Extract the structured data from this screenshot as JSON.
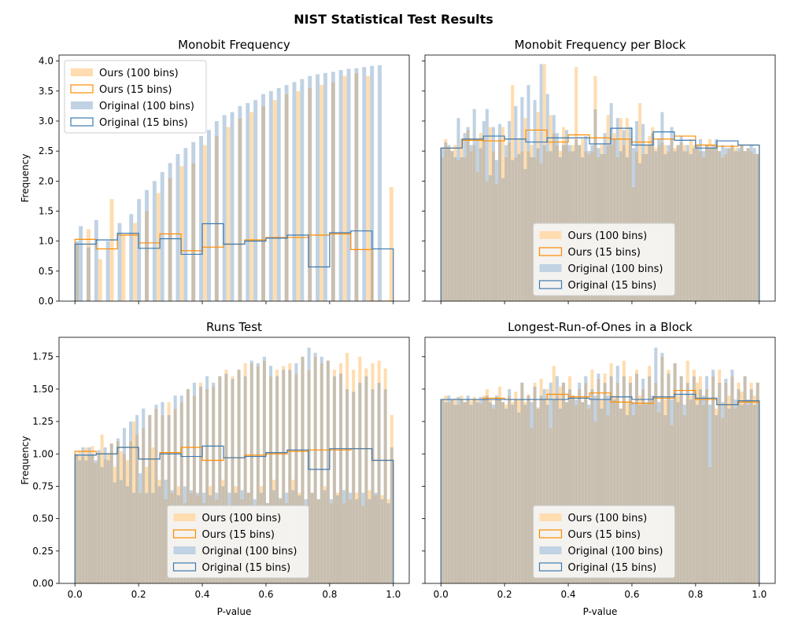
{
  "figure": {
    "title": "NIST Statistical Test Results"
  },
  "legend_labels": [
    "Ours (100 bins)",
    "Ours (15 bins)",
    "Original (100 bins)",
    "Original (15 bins)"
  ],
  "colors": {
    "ours_fill": "#ffddb0",
    "ours_edge": "#ff8c00",
    "orig_fill": "#c0d2e3",
    "orig_edge": "#3d7ab0",
    "overlap": "#c8bfb0"
  },
  "chart_data": [
    {
      "type": "bar",
      "title": "Monobit Frequency",
      "xlabel": "",
      "ylabel": "Frequency",
      "xlim": [
        -0.05,
        1.05
      ],
      "ylim": [
        0,
        4.1
      ],
      "yticks": [
        0.0,
        0.5,
        1.0,
        1.5,
        2.0,
        2.5,
        3.0,
        3.5,
        4.0
      ],
      "ytick_labels": [
        "0.0",
        "0.5",
        "1.0",
        "1.5",
        "2.0",
        "2.5",
        "3.0",
        "3.5",
        "4.0"
      ],
      "xticks": [
        0.0,
        0.2,
        0.4,
        0.6,
        0.8,
        1.0
      ],
      "xtick_labels": [
        "",
        "",
        "",
        "",
        "",
        ""
      ],
      "legend_position": "upper-left",
      "ours_100": [
        0.95,
        0,
        0,
        1.2,
        0,
        0,
        0.7,
        0,
        0,
        1.7,
        0,
        0,
        1.1,
        0,
        0,
        1.3,
        0,
        0,
        1.5,
        0,
        0,
        1.8,
        0,
        0,
        2.05,
        0,
        0,
        2.25,
        0,
        0,
        2.3,
        0,
        0,
        2.6,
        0,
        0,
        2.75,
        0,
        0,
        2.9,
        0,
        0,
        3.05,
        0,
        0,
        3.15,
        0,
        0,
        3.25,
        0,
        0,
        3.35,
        0,
        0,
        3.45,
        0,
        0,
        3.5,
        0,
        0,
        3.55,
        0,
        0,
        3.6,
        0,
        0,
        3.65,
        0,
        0,
        3.75,
        0,
        0,
        3.8,
        0,
        0,
        3.75,
        0,
        0,
        0,
        0,
        0,
        1.9
      ],
      "orig_100": [
        1.0,
        1.25,
        0,
        0.9,
        0,
        1.35,
        0,
        0,
        1.0,
        0,
        0,
        1.3,
        0,
        0,
        1.45,
        0,
        1.7,
        0,
        1.85,
        0,
        2.0,
        0,
        2.15,
        0,
        2.3,
        0,
        2.45,
        0,
        2.55,
        0,
        2.65,
        0,
        2.75,
        0,
        2.85,
        0,
        3.0,
        0,
        3.1,
        0,
        3.15,
        0,
        3.25,
        0,
        3.3,
        0,
        3.35,
        0,
        3.45,
        0,
        3.5,
        0,
        3.55,
        0,
        3.6,
        0,
        3.65,
        0,
        3.7,
        0,
        3.75,
        0,
        3.78,
        0,
        3.8,
        0,
        3.82,
        0,
        3.85,
        0,
        3.87,
        0,
        3.88,
        0,
        3.9,
        0,
        3.92,
        0,
        3.93,
        0,
        0,
        0,
        0,
        0,
        0,
        0,
        0,
        0,
        0,
        0,
        0,
        0,
        0,
        0,
        0,
        0,
        0,
        1.95
      ],
      "ours_15": [
        1.03,
        0.87,
        1.1,
        0.97,
        1.12,
        0.84,
        0.9,
        0.95,
        1.02,
        1.06,
        1.06,
        1.1,
        1.12,
        0.86,
        0.0
      ],
      "orig_15": [
        0.95,
        1.02,
        1.13,
        0.88,
        1.04,
        0.78,
        1.29,
        0.95,
        1.0,
        1.05,
        1.1,
        0.57,
        1.14,
        1.17,
        0.87
      ]
    },
    {
      "type": "bar",
      "title": "Monobit Frequency per Block",
      "xlabel": "",
      "ylabel": "",
      "xlim": [
        -0.05,
        1.05
      ],
      "ylim": [
        0,
        4.1
      ],
      "yticks": [
        0.0,
        0.5,
        1.0,
        1.5,
        2.0,
        2.5,
        3.0,
        3.5,
        4.0
      ],
      "ytick_labels": [
        "",
        "",
        "",
        "",
        "",
        "",
        "",
        "",
        ""
      ],
      "xticks": [
        0.0,
        0.2,
        0.4,
        0.6,
        0.8,
        1.0
      ],
      "xtick_labels": [
        "",
        "",
        "",
        "",
        "",
        ""
      ],
      "legend_position": "lower-center",
      "ours_100": [
        2.4,
        2.7,
        2.55,
        2.5,
        2.6,
        2.35,
        2.7,
        2.4,
        2.85,
        2.5,
        2.6,
        2.15,
        2.8,
        2.7,
        2.0,
        2.9,
        2.5,
        1.95,
        2.7,
        2.9,
        2.4,
        2.65,
        3.6,
        2.4,
        2.7,
        2.5,
        3.05,
        2.5,
        2.6,
        2.4,
        3.15,
        2.3,
        3.95,
        2.5,
        3.1,
        2.8,
        2.6,
        2.5,
        2.9,
        2.6,
        2.5,
        2.6,
        3.9,
        2.6,
        2.7,
        2.5,
        2.45,
        2.5,
        3.75,
        2.4,
        2.6,
        2.45,
        3.1,
        2.6,
        2.8,
        2.4,
        3.05,
        2.6,
        3.05,
        2.7,
        1.9,
        2.5,
        3.3,
        2.45,
        2.6,
        2.75,
        2.9,
        2.55,
        2.6,
        2.65,
        2.6,
        2.5,
        2.7,
        2.55,
        2.6,
        2.65,
        2.6,
        2.5,
        2.7,
        2.6,
        2.6,
        2.5,
        2.4,
        2.6,
        2.7,
        2.55,
        2.6,
        2.5,
        2.4,
        2.45,
        2.55,
        2.6,
        2.55,
        2.5,
        2.6,
        2.5,
        2.55,
        2.5,
        2.45,
        2.45
      ],
      "orig_100": [
        2.55,
        2.65,
        2.6,
        2.5,
        2.4,
        3.05,
        2.4,
        2.8,
        2.9,
        2.6,
        3.2,
        2.7,
        2.55,
        3.0,
        3.2,
        2.1,
        2.9,
        2.35,
        2.95,
        2.05,
        2.6,
        3.0,
        2.35,
        3.25,
        2.45,
        3.4,
        2.2,
        3.6,
        2.4,
        3.35,
        2.55,
        3.95,
        2.6,
        3.45,
        2.5,
        3.1,
        2.8,
        2.4,
        2.6,
        2.85,
        2.6,
        2.5,
        2.7,
        2.6,
        2.4,
        2.75,
        2.5,
        2.6,
        3.2,
        2.55,
        2.45,
        2.8,
        2.6,
        3.3,
        2.7,
        3.05,
        2.5,
        2.85,
        2.4,
        2.9,
        2.55,
        3.0,
        2.3,
        2.95,
        2.45,
        2.6,
        2.8,
        2.5,
        2.7,
        3.15,
        2.45,
        2.6,
        2.9,
        2.5,
        2.6,
        2.75,
        2.5,
        2.6,
        2.45,
        2.55,
        2.6,
        2.7,
        2.5,
        2.6,
        2.55,
        2.6,
        2.7,
        2.5,
        2.6,
        2.55,
        2.55,
        2.6,
        2.5,
        2.55,
        2.6,
        2.5,
        2.55,
        2.6,
        2.55,
        2.45
      ],
      "ours_15": [
        2.55,
        2.68,
        2.67,
        2.7,
        2.85,
        2.65,
        2.77,
        2.72,
        2.7,
        2.65,
        2.7,
        2.75,
        2.6,
        2.58,
        2.6
      ],
      "orig_15": [
        2.55,
        2.7,
        2.75,
        2.7,
        2.65,
        2.72,
        2.72,
        2.62,
        2.88,
        2.6,
        2.82,
        2.68,
        2.55,
        2.67,
        2.6
      ]
    },
    {
      "type": "bar",
      "title": "Runs Test",
      "xlabel": "P-value",
      "ylabel": "Frequency",
      "xlim": [
        -0.05,
        1.05
      ],
      "ylim": [
        0,
        1.9
      ],
      "yticks": [
        0.0,
        0.25,
        0.5,
        0.75,
        1.0,
        1.25,
        1.5,
        1.75
      ],
      "ytick_labels": [
        "0.00",
        "0.25",
        "0.50",
        "0.75",
        "1.00",
        "1.25",
        "1.50",
        "1.75"
      ],
      "xticks": [
        0.0,
        0.2,
        0.4,
        0.6,
        0.8,
        1.0
      ],
      "xtick_labels": [
        "0.0",
        "0.2",
        "0.4",
        "0.6",
        "0.8",
        "1.0"
      ],
      "legend_position": "lower-center",
      "ours_100": [
        1.0,
        1.02,
        0.98,
        1.05,
        1.0,
        1.06,
        0.93,
        1.0,
        1.15,
        0.96,
        1.0,
        1.08,
        0.9,
        1.1,
        1.02,
        1.0,
        0.95,
        1.1,
        1.25,
        1.15,
        0.7,
        1.2,
        0.9,
        1.3,
        1.05,
        1.35,
        0.8,
        1.3,
        0.65,
        1.4,
        0.7,
        1.35,
        0.75,
        1.4,
        0.62,
        1.5,
        0.7,
        1.45,
        0.68,
        1.55,
        0.62,
        1.5,
        0.75,
        1.52,
        0.65,
        1.6,
        0.8,
        1.65,
        0.6,
        1.6,
        0.75,
        1.65,
        0.65,
        1.7,
        0.7,
        1.7,
        0.6,
        1.68,
        0.75,
        1.72,
        0.62,
        1.6,
        0.8,
        1.65,
        0.65,
        1.68,
        0.62,
        1.7,
        0.8,
        1.62,
        0.7,
        1.75,
        0.6,
        1.65,
        0.7,
        1.75,
        0.65,
        1.7,
        0.75,
        1.72,
        0.62,
        1.65,
        0.7,
        1.7,
        0.62,
        1.78,
        0.65,
        1.65,
        0.7,
        1.75,
        0.6,
        1.66,
        0.72,
        1.7,
        0.68,
        1.72,
        0.68,
        1.66,
        0.65,
        1.3
      ],
      "orig_100": [
        1.0,
        0.95,
        1.05,
        0.95,
        1.05,
        1.0,
        0.95,
        1.03,
        0.9,
        1.05,
        0.95,
        1.08,
        0.78,
        1.12,
        0.8,
        1.2,
        0.75,
        1.25,
        0.7,
        1.3,
        0.85,
        1.35,
        0.7,
        1.3,
        0.7,
        1.38,
        0.75,
        1.4,
        0.8,
        1.3,
        0.72,
        1.45,
        0.68,
        1.45,
        0.75,
        1.5,
        0.72,
        1.55,
        0.7,
        1.52,
        0.7,
        1.6,
        0.68,
        1.55,
        0.7,
        1.6,
        0.75,
        1.62,
        0.7,
        1.58,
        0.7,
        1.65,
        0.72,
        1.6,
        0.7,
        1.72,
        0.65,
        1.7,
        0.7,
        1.75,
        0.62,
        1.68,
        0.72,
        1.6,
        0.66,
        1.65,
        0.7,
        1.65,
        0.72,
        1.7,
        0.68,
        1.75,
        0.65,
        1.82,
        0.7,
        1.78,
        0.65,
        1.75,
        0.72,
        1.72,
        0.65,
        1.6,
        0.68,
        1.62,
        0.72,
        1.5,
        0.7,
        1.48,
        0.65,
        1.55,
        0.7,
        1.6,
        0.65,
        1.5,
        0.7,
        1.55,
        0.65,
        1.5,
        0.62,
        1.05
      ],
      "ours_15": [
        1.02,
        1.0,
        1.05,
        0.96,
        1.01,
        1.05,
        0.95,
        0.97,
        0.99,
        1.0,
        1.02,
        1.03,
        1.03,
        1.04,
        0.95
      ],
      "orig_15": [
        0.99,
        1.0,
        1.05,
        0.96,
        1.0,
        0.98,
        1.06,
        0.97,
        0.98,
        1.01,
        1.03,
        0.88,
        1.04,
        1.04,
        0.95
      ]
    },
    {
      "type": "bar",
      "title": "Longest-Run-of-Ones in a Block",
      "xlabel": "P-value",
      "ylabel": "",
      "xlim": [
        -0.05,
        1.05
      ],
      "ylim": [
        0,
        1.9
      ],
      "yticks": [
        0.0,
        0.25,
        0.5,
        0.75,
        1.0,
        1.25,
        1.5,
        1.75
      ],
      "ytick_labels": [
        "",
        "",
        "",
        "",
        "",
        "",
        "",
        ""
      ],
      "xticks": [
        0.0,
        0.2,
        0.4,
        0.6,
        0.8,
        1.0
      ],
      "xtick_labels": [
        "0.0",
        "0.2",
        "0.4",
        "0.6",
        "0.8",
        "1.0"
      ],
      "legend_position": "lower-center",
      "ours_100": [
        1.42,
        1.45,
        1.4,
        1.42,
        1.43,
        1.38,
        1.45,
        1.4,
        1.42,
        1.41,
        1.44,
        1.42,
        1.39,
        1.45,
        1.5,
        1.42,
        1.35,
        1.44,
        1.52,
        1.4,
        1.38,
        1.45,
        1.4,
        1.48,
        1.42,
        1.55,
        1.4,
        1.46,
        1.2,
        1.55,
        1.36,
        1.58,
        1.42,
        1.5,
        1.2,
        1.68,
        1.45,
        1.52,
        1.55,
        1.4,
        1.6,
        1.45,
        1.38,
        1.5,
        1.4,
        1.55,
        1.35,
        1.65,
        1.25,
        1.58,
        1.42,
        1.62,
        1.3,
        1.7,
        1.45,
        1.55,
        1.35,
        1.72,
        1.4,
        1.6,
        1.3,
        1.65,
        1.45,
        1.5,
        1.38,
        1.68,
        1.4,
        1.55,
        1.32,
        1.75,
        1.42,
        1.65,
        1.22,
        1.7,
        1.45,
        1.6,
        1.3,
        1.72,
        1.45,
        1.65,
        1.55,
        1.6,
        1.38,
        1.5,
        0.9,
        1.6,
        1.35,
        1.65,
        1.28,
        1.55,
        1.45,
        1.6,
        1.35,
        1.55,
        1.48,
        1.6,
        1.38,
        1.55,
        1.45,
        1.55
      ],
      "orig_100": [
        1.42,
        1.4,
        1.45,
        1.42,
        1.38,
        1.44,
        1.42,
        1.4,
        1.45,
        1.38,
        1.42,
        1.4,
        1.44,
        1.42,
        1.45,
        1.4,
        1.38,
        1.45,
        1.42,
        1.4,
        1.35,
        1.5,
        1.38,
        1.42,
        1.32,
        1.55,
        1.38,
        1.45,
        1.4,
        1.52,
        1.35,
        1.45,
        1.5,
        1.38,
        1.55,
        1.42,
        1.6,
        1.35,
        1.55,
        1.4,
        1.5,
        1.45,
        1.42,
        1.55,
        1.4,
        1.6,
        1.38,
        1.5,
        1.45,
        1.62,
        1.35,
        1.55,
        1.45,
        1.6,
        1.42,
        1.68,
        1.35,
        1.6,
        1.3,
        1.55,
        1.4,
        1.62,
        1.38,
        1.58,
        1.4,
        1.6,
        1.45,
        1.82,
        1.4,
        1.78,
        1.3,
        1.62,
        1.42,
        1.7,
        1.4,
        1.6,
        1.38,
        1.55,
        1.42,
        1.6,
        1.38,
        1.5,
        1.45,
        1.6,
        1.38,
        1.65,
        1.3,
        1.55,
        1.4,
        1.58,
        1.35,
        1.65,
        1.42,
        1.5,
        1.38,
        1.6,
        1.42,
        1.5,
        1.38,
        1.55
      ],
      "ours_15": [
        1.42,
        1.42,
        1.43,
        1.42,
        1.42,
        1.46,
        1.44,
        1.47,
        1.4,
        1.39,
        1.43,
        1.49,
        1.42,
        1.38,
        1.4
      ],
      "orig_15": [
        1.42,
        1.42,
        1.42,
        1.42,
        1.42,
        1.42,
        1.43,
        1.42,
        1.44,
        1.42,
        1.44,
        1.46,
        1.43,
        1.38,
        1.41
      ]
    }
  ]
}
